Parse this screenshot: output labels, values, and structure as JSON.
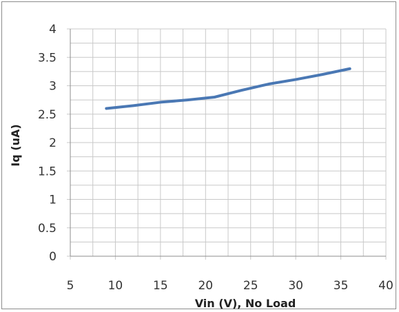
{
  "chart_data": {
    "type": "line",
    "xlabel": "Vin (V), No Load",
    "ylabel": "Iq (uA)",
    "xlim": [
      5,
      40
    ],
    "ylim": [
      0,
      4
    ],
    "x_ticks": [
      "5",
      "10",
      "15",
      "20",
      "25",
      "30",
      "35",
      "40"
    ],
    "y_ticks": [
      "0",
      "0.5",
      "1",
      "1.5",
      "2",
      "2.5",
      "3",
      "3.5",
      "4"
    ],
    "grid": true,
    "grid_minor": true,
    "series": [
      {
        "color": "#4a78b4",
        "x": [
          9,
          12,
          15,
          18,
          21,
          24,
          27,
          30,
          33,
          36
        ],
        "y": [
          2.6,
          2.65,
          2.71,
          2.75,
          2.8,
          2.92,
          3.03,
          3.11,
          3.2,
          3.3
        ]
      }
    ],
    "colors": {
      "grid": "#c8c8c8",
      "axis": "#8c8c8c",
      "line": "#4a78b4"
    }
  }
}
